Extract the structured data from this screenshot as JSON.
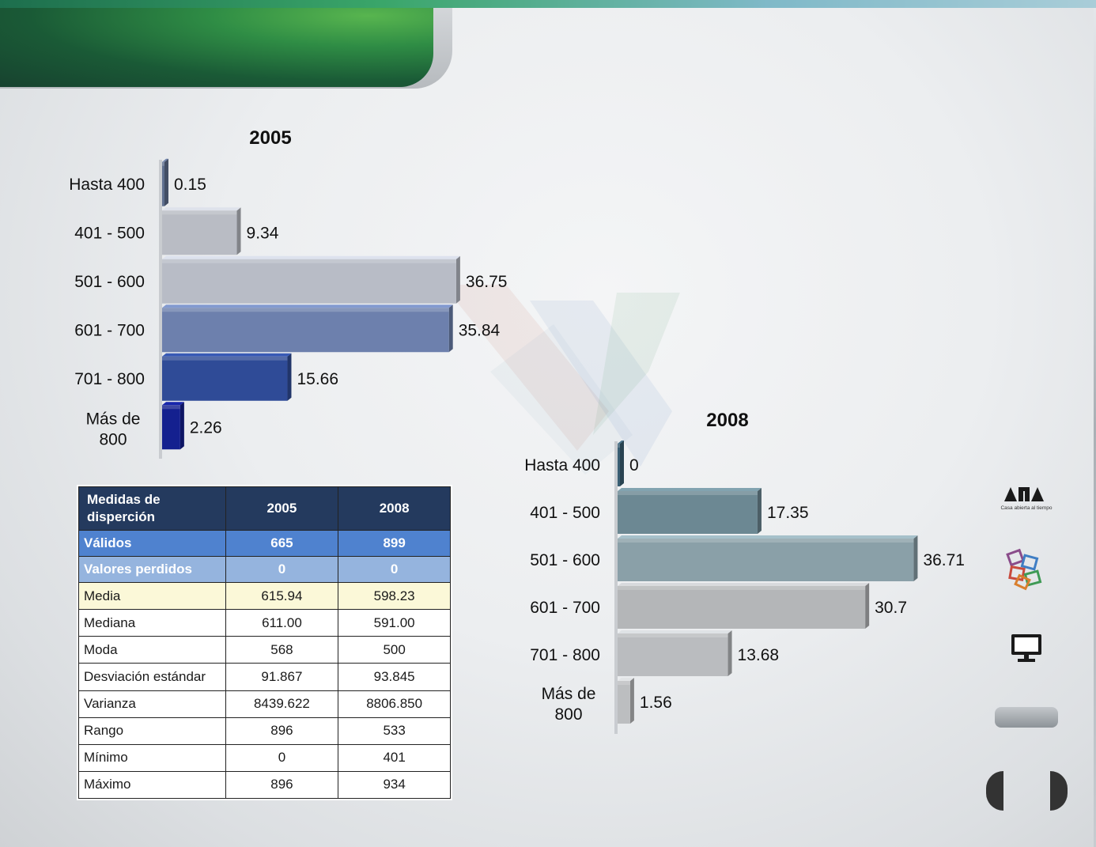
{
  "chart_data": [
    {
      "type": "bar",
      "orientation": "horizontal",
      "title": "2005",
      "categories": [
        "Hasta 400",
        "401 - 500",
        "501 - 600",
        "601 - 700",
        "701 - 800",
        "Más de 800"
      ],
      "values": [
        0.15,
        9.34,
        36.75,
        35.84,
        15.66,
        2.26
      ],
      "value_labels": [
        "0.15",
        "9.34",
        "36.75",
        "35.84",
        "15.66",
        "2.26"
      ],
      "colors": [
        "#5f6f8f",
        "#b9bcc4",
        "#b8bcc6",
        "#6d80ad",
        "#2f4b97",
        "#14208f"
      ],
      "xlim": [
        0,
        37
      ],
      "grid": false
    },
    {
      "type": "bar",
      "orientation": "horizontal",
      "title": "2008",
      "categories": [
        "Hasta 400",
        "401 - 500",
        "501 - 600",
        "601 - 700",
        "701 - 800",
        "Más de 800"
      ],
      "values": [
        0,
        17.35,
        36.71,
        30.7,
        13.68,
        1.56
      ],
      "value_labels": [
        "0",
        "17.35",
        "36.71",
        "30.7",
        "13.68",
        "1.56"
      ],
      "colors": [
        "#3a5f74",
        "#6c8893",
        "#8aa0a8",
        "#b4b6b8",
        "#babcbf",
        "#bcbec0"
      ],
      "xlim": [
        0,
        37
      ],
      "grid": false
    }
  ],
  "table": {
    "headers": [
      "Medidas de disperción",
      "2005",
      "2008"
    ],
    "rows": [
      {
        "label": "Válidos",
        "v2005": "665",
        "v2008": "899"
      },
      {
        "label": "Valores perdidos",
        "v2005": "0",
        "v2008": "0"
      },
      {
        "label": "Media",
        "v2005": "615.94",
        "v2008": "598.23"
      },
      {
        "label": "Mediana",
        "v2005": "611.00",
        "v2008": "591.00"
      },
      {
        "label": "Moda",
        "v2005": "568",
        "v2008": "500"
      },
      {
        "label": "Desviación estándar",
        "v2005": "91.867",
        "v2008": "93.845"
      },
      {
        "label": "Varianza",
        "v2005": "8439.622",
        "v2008": "8806.850"
      },
      {
        "label": "Rango",
        "v2005": "896",
        "v2008": "533"
      },
      {
        "label": "Mínimo",
        "v2005": "0",
        "v2008": "401"
      },
      {
        "label": "Máximo",
        "v2005": "896",
        "v2008": "934"
      }
    ]
  },
  "logo": {
    "text": "UAM",
    "tagline": "Casa abierta al tiempo"
  },
  "icons": [
    "uam-logo-icon",
    "cubes-logo-icon",
    "monitor-icon"
  ]
}
